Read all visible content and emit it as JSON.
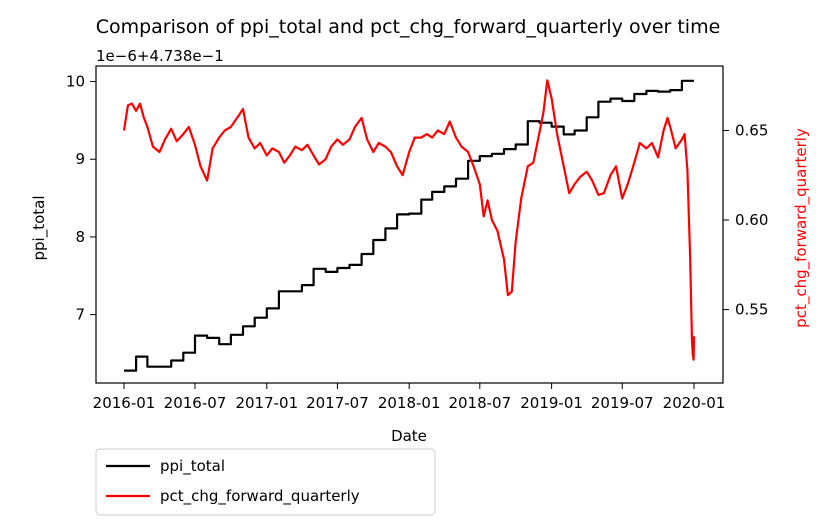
{
  "chart_data": {
    "type": "line",
    "title": "Comparison of ppi_total and pct_chg_forward_quarterly over time",
    "xlabel": "Date",
    "x_ticks": [
      "2016-01",
      "2016-07",
      "2017-01",
      "2017-07",
      "2018-01",
      "2018-07",
      "2019-01",
      "2019-07",
      "2020-01"
    ],
    "left_axis": {
      "label": "ppi_total",
      "offset_text": "1e−6+4.738e−1",
      "ticks": [
        "7",
        "8",
        "9",
        "10"
      ],
      "ylim": [
        6.12,
        10.2
      ],
      "color": "#000000"
    },
    "right_axis": {
      "label": "pct_chg_forward_quarterly",
      "ticks": [
        "0.55",
        "0.60",
        "0.65"
      ],
      "ylim": [
        0.509,
        0.686
      ],
      "color": "#ff0000"
    },
    "legend": {
      "placement": "bottom-left, below axes",
      "entries": [
        {
          "label": "ppi_total",
          "color": "#000000"
        },
        {
          "label": "pct_chg_forward_quarterly",
          "color": "#ff0000"
        }
      ]
    },
    "series": [
      {
        "name": "ppi_total",
        "axis": "left",
        "color": "#000000",
        "step": true,
        "points": [
          [
            "2016-01-01",
            6.28
          ],
          [
            "2016-02-01",
            6.46
          ],
          [
            "2016-03-01",
            6.33
          ],
          [
            "2016-05-01",
            6.41
          ],
          [
            "2016-06-01",
            6.51
          ],
          [
            "2016-07-01",
            6.73
          ],
          [
            "2016-08-01",
            6.7
          ],
          [
            "2016-09-01",
            6.62
          ],
          [
            "2016-10-01",
            6.74
          ],
          [
            "2016-11-01",
            6.85
          ],
          [
            "2016-12-01",
            6.96
          ],
          [
            "2017-01-01",
            7.08
          ],
          [
            "2017-02-01",
            7.3
          ],
          [
            "2017-04-01",
            7.38
          ],
          [
            "2017-05-01",
            7.59
          ],
          [
            "2017-06-01",
            7.55
          ],
          [
            "2017-07-01",
            7.6
          ],
          [
            "2017-08-01",
            7.64
          ],
          [
            "2017-09-01",
            7.78
          ],
          [
            "2017-10-01",
            7.96
          ],
          [
            "2017-11-01",
            8.11
          ],
          [
            "2017-12-01",
            8.29
          ],
          [
            "2018-01-01",
            8.3
          ],
          [
            "2018-02-01",
            8.48
          ],
          [
            "2018-03-01",
            8.58
          ],
          [
            "2018-04-01",
            8.65
          ],
          [
            "2018-05-01",
            8.75
          ],
          [
            "2018-06-01",
            8.98
          ],
          [
            "2018-07-01",
            9.04
          ],
          [
            "2018-08-01",
            9.07
          ],
          [
            "2018-09-01",
            9.13
          ],
          [
            "2018-10-01",
            9.19
          ],
          [
            "2018-11-01",
            9.49
          ],
          [
            "2018-12-01",
            9.47
          ],
          [
            "2019-01-01",
            9.42
          ],
          [
            "2019-02-01",
            9.32
          ],
          [
            "2019-03-01",
            9.37
          ],
          [
            "2019-04-01",
            9.54
          ],
          [
            "2019-05-01",
            9.74
          ],
          [
            "2019-06-01",
            9.78
          ],
          [
            "2019-07-01",
            9.75
          ],
          [
            "2019-08-01",
            9.84
          ],
          [
            "2019-09-01",
            9.88
          ],
          [
            "2019-10-01",
            9.87
          ],
          [
            "2019-11-01",
            9.89
          ],
          [
            "2019-12-01",
            10.01
          ],
          [
            "2020-01-01",
            10.01
          ]
        ]
      },
      {
        "name": "pct_chg_forward_quarterly",
        "axis": "right",
        "color": "#ff0000",
        "step": false,
        "points": [
          [
            "2016-01-01",
            0.65
          ],
          [
            "2016-01-11",
            0.664
          ],
          [
            "2016-01-21",
            0.665
          ],
          [
            "2016-02-01",
            0.661
          ],
          [
            "2016-02-11",
            0.665
          ],
          [
            "2016-02-21",
            0.657
          ],
          [
            "2016-03-01",
            0.652
          ],
          [
            "2016-03-15",
            0.641
          ],
          [
            "2016-04-01",
            0.638
          ],
          [
            "2016-04-15",
            0.645
          ],
          [
            "2016-05-01",
            0.651
          ],
          [
            "2016-05-15",
            0.644
          ],
          [
            "2016-06-01",
            0.648
          ],
          [
            "2016-06-15",
            0.652
          ],
          [
            "2016-07-01",
            0.642
          ],
          [
            "2016-07-15",
            0.63
          ],
          [
            "2016-08-01",
            0.622
          ],
          [
            "2016-08-15",
            0.64
          ],
          [
            "2016-09-01",
            0.646
          ],
          [
            "2016-09-15",
            0.65
          ],
          [
            "2016-10-01",
            0.652
          ],
          [
            "2016-10-20",
            0.658
          ],
          [
            "2016-11-01",
            0.662
          ],
          [
            "2016-11-15",
            0.646
          ],
          [
            "2016-12-01",
            0.64
          ],
          [
            "2016-12-15",
            0.643
          ],
          [
            "2017-01-01",
            0.636
          ],
          [
            "2017-01-15",
            0.64
          ],
          [
            "2017-02-01",
            0.638
          ],
          [
            "2017-02-15",
            0.632
          ],
          [
            "2017-03-01",
            0.636
          ],
          [
            "2017-03-15",
            0.641
          ],
          [
            "2017-04-01",
            0.639
          ],
          [
            "2017-04-15",
            0.642
          ],
          [
            "2017-05-01",
            0.636
          ],
          [
            "2017-05-15",
            0.631
          ],
          [
            "2017-06-01",
            0.634
          ],
          [
            "2017-06-15",
            0.641
          ],
          [
            "2017-07-01",
            0.645
          ],
          [
            "2017-07-15",
            0.642
          ],
          [
            "2017-08-01",
            0.645
          ],
          [
            "2017-08-15",
            0.652
          ],
          [
            "2017-09-01",
            0.657
          ],
          [
            "2017-09-15",
            0.645
          ],
          [
            "2017-10-01",
            0.638
          ],
          [
            "2017-10-15",
            0.643
          ],
          [
            "2017-11-01",
            0.641
          ],
          [
            "2017-11-15",
            0.638
          ],
          [
            "2017-12-01",
            0.63
          ],
          [
            "2017-12-15",
            0.625
          ],
          [
            "2018-01-01",
            0.638
          ],
          [
            "2018-01-15",
            0.646
          ],
          [
            "2018-02-01",
            0.646
          ],
          [
            "2018-02-15",
            0.648
          ],
          [
            "2018-03-01",
            0.646
          ],
          [
            "2018-03-15",
            0.65
          ],
          [
            "2018-04-01",
            0.648
          ],
          [
            "2018-04-15",
            0.655
          ],
          [
            "2018-05-01",
            0.646
          ],
          [
            "2018-05-15",
            0.641
          ],
          [
            "2018-06-01",
            0.638
          ],
          [
            "2018-06-15",
            0.63
          ],
          [
            "2018-07-01",
            0.62
          ],
          [
            "2018-07-11",
            0.602
          ],
          [
            "2018-07-21",
            0.611
          ],
          [
            "2018-08-01",
            0.6
          ],
          [
            "2018-08-15",
            0.594
          ],
          [
            "2018-09-01",
            0.578
          ],
          [
            "2018-09-11",
            0.558
          ],
          [
            "2018-09-21",
            0.56
          ],
          [
            "2018-10-01",
            0.588
          ],
          [
            "2018-10-15",
            0.612
          ],
          [
            "2018-11-01",
            0.63
          ],
          [
            "2018-11-15",
            0.632
          ],
          [
            "2018-12-01",
            0.649
          ],
          [
            "2018-12-11",
            0.66
          ],
          [
            "2018-12-21",
            0.678
          ],
          [
            "2019-01-01",
            0.668
          ],
          [
            "2019-01-15",
            0.648
          ],
          [
            "2019-02-01",
            0.63
          ],
          [
            "2019-02-15",
            0.615
          ],
          [
            "2019-03-01",
            0.62
          ],
          [
            "2019-03-15",
            0.624
          ],
          [
            "2019-04-01",
            0.627
          ],
          [
            "2019-04-15",
            0.622
          ],
          [
            "2019-05-01",
            0.614
          ],
          [
            "2019-05-15",
            0.615
          ],
          [
            "2019-06-01",
            0.625
          ],
          [
            "2019-06-15",
            0.63
          ],
          [
            "2019-07-01",
            0.612
          ],
          [
            "2019-07-15",
            0.62
          ],
          [
            "2019-08-01",
            0.632
          ],
          [
            "2019-08-15",
            0.643
          ],
          [
            "2019-09-01",
            0.64
          ],
          [
            "2019-09-15",
            0.643
          ],
          [
            "2019-10-01",
            0.635
          ],
          [
            "2019-10-15",
            0.65
          ],
          [
            "2019-10-25",
            0.657
          ],
          [
            "2019-11-01",
            0.652
          ],
          [
            "2019-11-15",
            0.64
          ],
          [
            "2019-12-01",
            0.645
          ],
          [
            "2019-12-08",
            0.648
          ],
          [
            "2019-12-15",
            0.628
          ],
          [
            "2019-12-22",
            0.58
          ],
          [
            "2019-12-27",
            0.532
          ],
          [
            "2019-12-29",
            0.525
          ],
          [
            "2019-12-31",
            0.522
          ],
          [
            "2020-01-01",
            0.535
          ]
        ]
      }
    ]
  }
}
